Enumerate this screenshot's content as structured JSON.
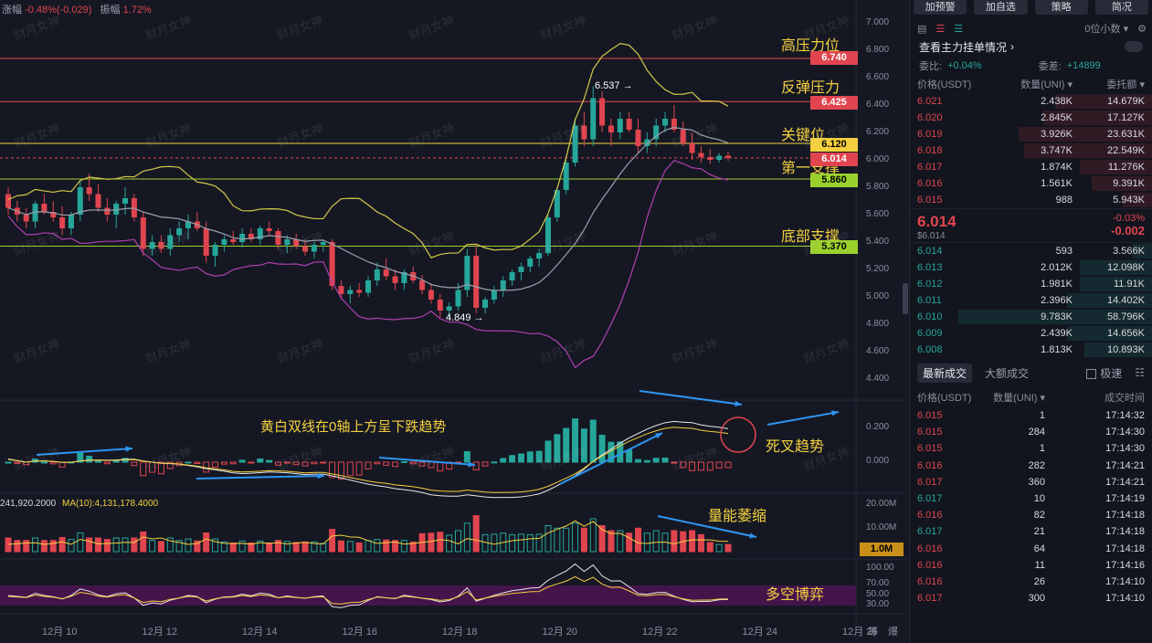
{
  "header": {
    "chg_label": "涨幅",
    "chg_value": "-0.48%(-0.029)",
    "amp_label": "振幅",
    "amp_value": "1.72%"
  },
  "watermark": "财月女神",
  "annotations": {
    "high_pressure": "高压力位",
    "rebound_pressure": "反弹压力",
    "key_level": "关键位",
    "first_support": "第一支撑",
    "bottom_support": "底部支撑",
    "macd_note": "黄白双线在0轴上方呈下跌趋势",
    "death_cross": "死叉趋势",
    "volume_shrink": "量能萎缩",
    "bull_bear": "多空博弈",
    "high_mark": "6.537",
    "low_mark": "4.849",
    "vol_ma_left": "241,920.2000",
    "vol_ma10": "MA(10):4,131,178.4000"
  },
  "price_tags": {
    "p1": "6.740",
    "p2": "6.425",
    "p3": "6.120",
    "p4": "6.014",
    "p5": "5.860",
    "p6": "5.370",
    "vol_tag": "1.0M"
  },
  "colors": {
    "red": "#e0454f",
    "green": "#26a69a",
    "yellow": "#f4d03f",
    "lime": "#9bd12c",
    "purple": "#6a1a6a"
  },
  "y_axis": {
    "price_ticks": [
      "7.000",
      "6.800",
      "6.600",
      "6.400",
      "6.200",
      "6.000",
      "5.800",
      "5.600",
      "5.400",
      "5.200",
      "5.000",
      "4.800",
      "4.600",
      "4.400"
    ],
    "macd_ticks": [
      "0.200",
      "0.000"
    ],
    "vol_ticks": [
      "20.00M",
      "10.00M"
    ],
    "rsi_ticks": [
      "100.00",
      "70.00",
      "50.00",
      "30.00"
    ]
  },
  "x_axis": {
    "labels": [
      "12月 10",
      "12月 12",
      "12月 14",
      "12月 16",
      "12月 18",
      "12月 20",
      "12月 22",
      "12月 24",
      "12月 26"
    ],
    "corner_a": "等",
    "corner_b": "爆"
  },
  "panel": {
    "buttons": [
      "加预警",
      "加自选",
      "策略",
      "简况"
    ],
    "tool_small": "0位小数",
    "orderbook_title": "查看主力挂单情况",
    "ratio_label": "委比:",
    "ratio_value": "+0.04%",
    "diff_label": "委差:",
    "diff_value": "+14899",
    "head_price": "价格(USDT)",
    "head_qty": "数量(UNI)",
    "head_total": "委托额",
    "asks": [
      {
        "p": "6.021",
        "q": "2.438K",
        "t": "14.679K",
        "w": 0.4
      },
      {
        "p": "6.020",
        "q": "2.845K",
        "t": "17.127K",
        "w": 0.45
      },
      {
        "p": "6.019",
        "q": "3.926K",
        "t": "23.631K",
        "w": 0.55
      },
      {
        "p": "6.018",
        "q": "3.747K",
        "t": "22.549K",
        "w": 0.53
      },
      {
        "p": "6.017",
        "q": "1.874K",
        "t": "11.276K",
        "w": 0.3
      },
      {
        "p": "6.016",
        "q": "1.561K",
        "t": "9.391K",
        "w": 0.25
      },
      {
        "p": "6.015",
        "q": "988",
        "t": "5.943K",
        "w": 0.12
      }
    ],
    "last_price": "6.014",
    "last_sub": "$6.014",
    "last_pct": "-0.03%",
    "last_chg": "-0.002",
    "bids": [
      {
        "p": "6.014",
        "q": "593",
        "t": "3.566K",
        "w": 0.08
      },
      {
        "p": "6.013",
        "q": "2.012K",
        "t": "12.098K",
        "w": 0.3
      },
      {
        "p": "6.012",
        "q": "1.981K",
        "t": "11.91K",
        "w": 0.3
      },
      {
        "p": "6.011",
        "q": "2.396K",
        "t": "14.402K",
        "w": 0.35
      },
      {
        "p": "6.010",
        "q": "9.783K",
        "t": "58.796K",
        "w": 0.8
      },
      {
        "p": "6.009",
        "q": "2.439K",
        "t": "14.656K",
        "w": 0.35
      },
      {
        "p": "6.008",
        "q": "1.813K",
        "t": "10.893K",
        "w": 0.28
      }
    ],
    "trade_tab_active": "最新成交",
    "trade_tab_other": "大额成交",
    "fast_label": "极速",
    "trade_head_price": "价格(USDT)",
    "trade_head_qty": "数量(UNI)",
    "trade_head_time": "成交时间",
    "trades": [
      {
        "p": "6.015",
        "q": "1",
        "t": "17:14:32",
        "d": "dn"
      },
      {
        "p": "6.015",
        "q": "284",
        "t": "17:14:30",
        "d": "dn"
      },
      {
        "p": "6.015",
        "q": "1",
        "t": "17:14:30",
        "d": "dn"
      },
      {
        "p": "6.016",
        "q": "282",
        "t": "17:14:21",
        "d": "dn"
      },
      {
        "p": "6.017",
        "q": "360",
        "t": "17:14:21",
        "d": "dn"
      },
      {
        "p": "6.017",
        "q": "10",
        "t": "17:14:19",
        "d": "up"
      },
      {
        "p": "6.016",
        "q": "82",
        "t": "17:14:18",
        "d": "dn"
      },
      {
        "p": "6.017",
        "q": "21",
        "t": "17:14:18",
        "d": "up"
      },
      {
        "p": "6.016",
        "q": "64",
        "t": "17:14:18",
        "d": "dn"
      },
      {
        "p": "6.016",
        "q": "11",
        "t": "17:14:16",
        "d": "dn"
      },
      {
        "p": "6.016",
        "q": "26",
        "t": "17:14:10",
        "d": "dn"
      },
      {
        "p": "6.017",
        "q": "300",
        "t": "17:14:10",
        "d": "dn"
      }
    ]
  },
  "chart_data": {
    "type": "candlestick",
    "pair": "UNI/USDT",
    "price_range": [
      4.35,
      7.05
    ],
    "levels": [
      6.74,
      6.425,
      6.12,
      6.014,
      5.86,
      5.37
    ],
    "high": 6.537,
    "low": 4.849,
    "candles": [
      [
        5.75,
        5.8,
        5.6,
        5.65
      ],
      [
        5.65,
        5.7,
        5.55,
        5.6
      ],
      [
        5.6,
        5.65,
        5.5,
        5.55
      ],
      [
        5.55,
        5.7,
        5.5,
        5.68
      ],
      [
        5.68,
        5.75,
        5.6,
        5.62
      ],
      [
        5.62,
        5.7,
        5.55,
        5.58
      ],
      [
        5.58,
        5.66,
        5.45,
        5.5
      ],
      [
        5.5,
        5.62,
        5.45,
        5.6
      ],
      [
        5.6,
        5.85,
        5.55,
        5.8
      ],
      [
        5.8,
        5.9,
        5.7,
        5.75
      ],
      [
        5.75,
        5.82,
        5.62,
        5.65
      ],
      [
        5.65,
        5.72,
        5.55,
        5.6
      ],
      [
        5.6,
        5.7,
        5.5,
        5.68
      ],
      [
        5.68,
        5.8,
        5.6,
        5.72
      ],
      [
        5.72,
        5.75,
        5.55,
        5.58
      ],
      [
        5.58,
        5.62,
        5.3,
        5.35
      ],
      [
        5.35,
        5.45,
        5.3,
        5.4
      ],
      [
        5.4,
        5.45,
        5.32,
        5.35
      ],
      [
        5.35,
        5.5,
        5.3,
        5.45
      ],
      [
        5.45,
        5.55,
        5.4,
        5.5
      ],
      [
        5.5,
        5.6,
        5.42,
        5.55
      ],
      [
        5.55,
        5.62,
        5.48,
        5.5
      ],
      [
        5.5,
        5.55,
        5.25,
        5.3
      ],
      [
        5.3,
        5.4,
        5.22,
        5.38
      ],
      [
        5.38,
        5.45,
        5.33,
        5.42
      ],
      [
        5.42,
        5.48,
        5.38,
        5.4
      ],
      [
        5.4,
        5.5,
        5.36,
        5.46
      ],
      [
        5.46,
        5.5,
        5.4,
        5.42
      ],
      [
        5.42,
        5.52,
        5.38,
        5.5
      ],
      [
        5.5,
        5.55,
        5.45,
        5.48
      ],
      [
        5.48,
        5.5,
        5.35,
        5.38
      ],
      [
        5.38,
        5.45,
        5.32,
        5.42
      ],
      [
        5.42,
        5.46,
        5.35,
        5.37
      ],
      [
        5.37,
        5.42,
        5.3,
        5.33
      ],
      [
        5.33,
        5.4,
        5.28,
        5.38
      ],
      [
        5.38,
        5.42,
        5.33,
        5.4
      ],
      [
        5.4,
        5.42,
        5.05,
        5.08
      ],
      [
        5.08,
        5.12,
        4.98,
        5.02
      ],
      [
        5.02,
        5.08,
        4.95,
        5.05
      ],
      [
        5.05,
        5.1,
        5.0,
        5.03
      ],
      [
        5.03,
        5.15,
        5.0,
        5.12
      ],
      [
        5.12,
        5.25,
        5.08,
        5.2
      ],
      [
        5.2,
        5.28,
        5.12,
        5.15
      ],
      [
        5.15,
        5.2,
        5.05,
        5.1
      ],
      [
        5.1,
        5.2,
        5.05,
        5.18
      ],
      [
        5.18,
        5.22,
        5.1,
        5.12
      ],
      [
        5.12,
        5.16,
        5.02,
        5.05
      ],
      [
        5.05,
        5.1,
        4.95,
        4.98
      ],
      [
        4.98,
        5.02,
        4.85,
        4.9
      ],
      [
        4.9,
        4.96,
        4.849,
        4.93
      ],
      [
        4.93,
        5.1,
        4.9,
        5.05
      ],
      [
        5.05,
        5.35,
        5.0,
        5.3
      ],
      [
        5.3,
        5.38,
        4.88,
        4.92
      ],
      [
        4.92,
        5.0,
        4.88,
        4.98
      ],
      [
        4.98,
        5.08,
        4.95,
        5.05
      ],
      [
        5.05,
        5.15,
        5.0,
        5.12
      ],
      [
        5.12,
        5.2,
        5.08,
        5.18
      ],
      [
        5.18,
        5.25,
        5.12,
        5.22
      ],
      [
        5.22,
        5.3,
        5.18,
        5.28
      ],
      [
        5.28,
        5.35,
        5.22,
        5.32
      ],
      [
        5.32,
        5.6,
        5.3,
        5.58
      ],
      [
        5.58,
        5.8,
        5.55,
        5.78
      ],
      [
        5.78,
        6.0,
        5.75,
        5.98
      ],
      [
        5.98,
        6.3,
        5.95,
        6.25
      ],
      [
        6.25,
        6.35,
        6.1,
        6.15
      ],
      [
        6.15,
        6.537,
        6.1,
        6.45
      ],
      [
        6.45,
        6.5,
        6.2,
        6.25
      ],
      [
        6.25,
        6.3,
        6.1,
        6.2
      ],
      [
        6.2,
        6.35,
        6.15,
        6.3
      ],
      [
        6.3,
        6.35,
        6.2,
        6.22
      ],
      [
        6.22,
        6.3,
        6.05,
        6.1
      ],
      [
        6.1,
        6.2,
        6.05,
        6.15
      ],
      [
        6.15,
        6.3,
        6.1,
        6.25
      ],
      [
        6.25,
        6.35,
        6.2,
        6.3
      ],
      [
        6.3,
        6.4,
        6.2,
        6.22
      ],
      [
        6.22,
        6.28,
        6.1,
        6.12
      ],
      [
        6.12,
        6.2,
        6.0,
        6.05
      ],
      [
        6.05,
        6.1,
        5.98,
        6.02
      ],
      [
        6.02,
        6.08,
        5.97,
        6.0
      ],
      [
        6.0,
        6.05,
        5.98,
        6.03
      ],
      [
        6.03,
        6.06,
        5.99,
        6.014
      ]
    ]
  }
}
